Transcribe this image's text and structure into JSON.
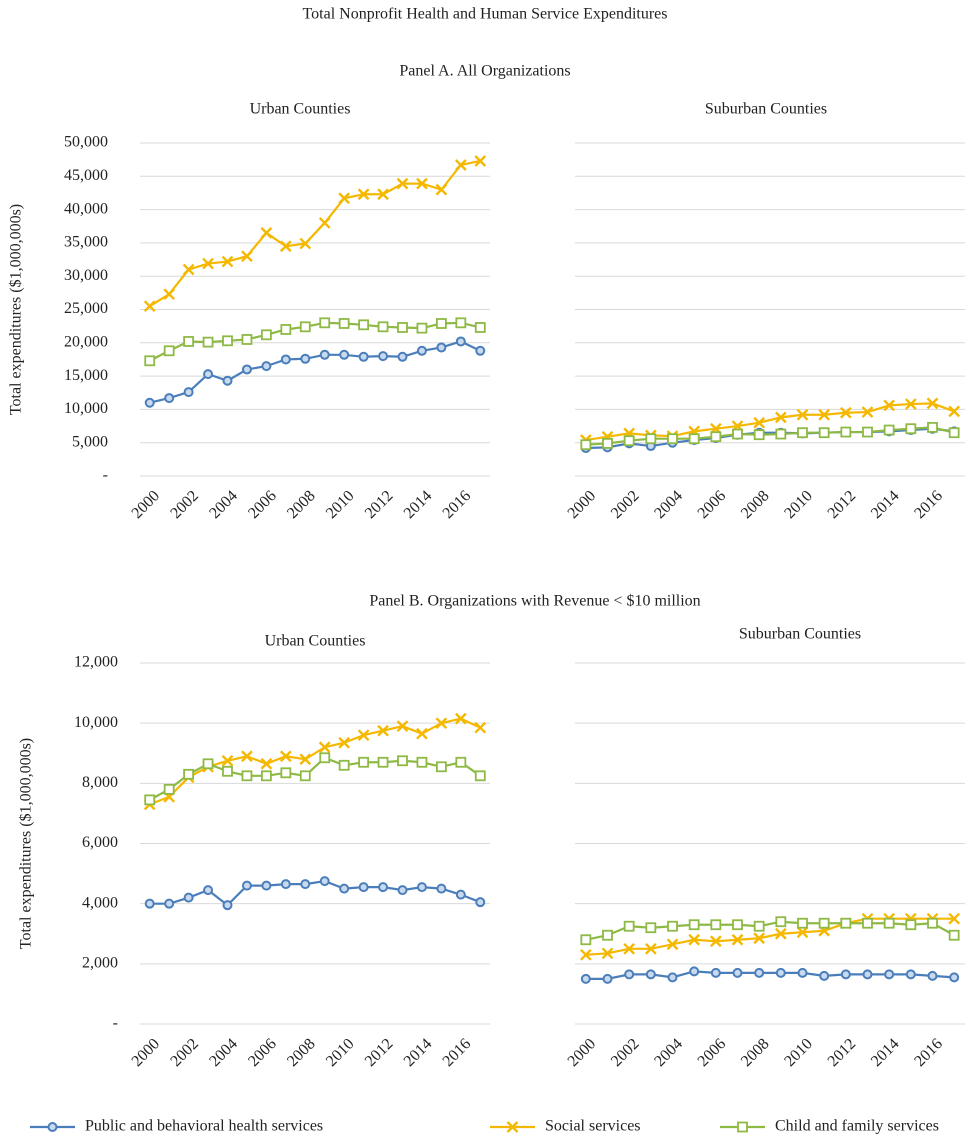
{
  "title": "Total Nonprofit Health and Human Service Expenditures",
  "panels": [
    {
      "title": "Panel A. All Organizations"
    },
    {
      "title": "Panel B. Organizations with Revenue < $10 million"
    }
  ],
  "chart_data": [
    {
      "type": "line",
      "title": "Urban Counties",
      "ylabel": "Total expenditures ($1,000,000s)",
      "categories": [
        "2000",
        null,
        "2002",
        null,
        "2004",
        null,
        "2006",
        null,
        "2008",
        null,
        "2010",
        null,
        "2012",
        null,
        "2014",
        null,
        "2016",
        null
      ],
      "ylim": [
        0,
        50000
      ],
      "yticks": [
        {
          "value": 0,
          "label": "-"
        },
        {
          "value": 5000,
          "label": "5,000"
        },
        {
          "value": 10000,
          "label": "10,000"
        },
        {
          "value": 15000,
          "label": "15,000"
        },
        {
          "value": 20000,
          "label": "20,000"
        },
        {
          "value": 25000,
          "label": "25,000"
        },
        {
          "value": 30000,
          "label": "30,000"
        },
        {
          "value": 35000,
          "label": "35,000"
        },
        {
          "value": 40000,
          "label": "40,000"
        },
        {
          "value": 45000,
          "label": "45,000"
        },
        {
          "value": 50000,
          "label": "50,000"
        }
      ],
      "grid": true,
      "series": [
        {
          "name": "Public and behavioral health services",
          "color": "#4a7ebb",
          "marker": "circle",
          "values": [
            11000,
            11700,
            12600,
            15300,
            14300,
            16000,
            16500,
            17500,
            17600,
            18200,
            18200,
            17900,
            18000,
            17900,
            18800,
            19300,
            20200,
            18800
          ]
        },
        {
          "name": "Social services",
          "color": "#f5b800",
          "marker": "x",
          "values": [
            25500,
            27300,
            31000,
            31900,
            32200,
            33000,
            36500,
            34500,
            34900,
            38000,
            41700,
            42300,
            42300,
            43900,
            43900,
            43000,
            46700,
            47300
          ]
        },
        {
          "name": "Child and family services",
          "color": "#8db944",
          "marker": "square",
          "values": [
            17300,
            18800,
            20200,
            20100,
            20300,
            20500,
            21200,
            22000,
            22400,
            23000,
            22900,
            22700,
            22400,
            22300,
            22200,
            22900,
            23000,
            22300
          ]
        }
      ]
    },
    {
      "type": "line",
      "title": "Suburban Counties",
      "categories": [
        "2000",
        null,
        "2002",
        null,
        "2004",
        null,
        "2006",
        null,
        "2008",
        null,
        "2010",
        null,
        "2012",
        null,
        "2014",
        null,
        "2016",
        null
      ],
      "series": [
        {
          "color": "#4a7ebb",
          "marker": "circle",
          "values": [
            4200,
            4300,
            4900,
            4500,
            5000,
            5400,
            5700,
            6200,
            6500,
            6500,
            6400,
            6500,
            6600,
            6600,
            6700,
            6900,
            7100,
            6700
          ]
        },
        {
          "color": "#f5b800",
          "marker": "x",
          "values": [
            5400,
            5900,
            6400,
            6100,
            6000,
            6700,
            7100,
            7500,
            8000,
            8800,
            9200,
            9200,
            9500,
            9600,
            10600,
            10800,
            10900,
            9700
          ]
        },
        {
          "color": "#8db944",
          "marker": "square",
          "values": [
            4700,
            4900,
            5300,
            5600,
            5600,
            5600,
            5900,
            6300,
            6200,
            6300,
            6500,
            6500,
            6600,
            6600,
            6900,
            7100,
            7300,
            6500
          ]
        }
      ]
    },
    {
      "type": "line",
      "title": "Urban Counties",
      "ylabel": "Total expenditures ($1,000,000s)",
      "categories": [
        "2000",
        null,
        "2002",
        null,
        "2004",
        null,
        "2006",
        null,
        "2008",
        null,
        "2010",
        null,
        "2012",
        null,
        "2014",
        null,
        "2016",
        null
      ],
      "ylim": [
        0,
        12000
      ],
      "yticks": [
        {
          "value": 0,
          "label": "-"
        },
        {
          "value": 2000,
          "label": "2,000"
        },
        {
          "value": 4000,
          "label": "4,000"
        },
        {
          "value": 6000,
          "label": "6,000"
        },
        {
          "value": 8000,
          "label": "8,000"
        },
        {
          "value": 10000,
          "label": "10,000"
        },
        {
          "value": 12000,
          "label": "12,000"
        }
      ],
      "grid": true,
      "series": [
        {
          "color": "#4a7ebb",
          "marker": "circle",
          "values": [
            4000,
            4000,
            4200,
            4450,
            3950,
            4600,
            4600,
            4650,
            4650,
            4750,
            4500,
            4550,
            4550,
            4450,
            4550,
            4500,
            4300,
            4050
          ]
        },
        {
          "color": "#f5b800",
          "marker": "x",
          "values": [
            7300,
            7550,
            8200,
            8550,
            8750,
            8900,
            8650,
            8900,
            8800,
            9200,
            9350,
            9600,
            9750,
            9900,
            9650,
            10000,
            10150,
            9850
          ]
        },
        {
          "color": "#8db944",
          "marker": "square",
          "values": [
            7450,
            7800,
            8300,
            8650,
            8400,
            8250,
            8250,
            8350,
            8250,
            8850,
            8600,
            8700,
            8700,
            8750,
            8700,
            8550,
            8700,
            8250
          ]
        }
      ]
    },
    {
      "type": "line",
      "title": "Suburban Counties",
      "categories": [
        "2000",
        null,
        "2002",
        null,
        "2004",
        null,
        "2006",
        null,
        "2008",
        null,
        "2010",
        null,
        "2012",
        null,
        "2014",
        null,
        "2016",
        null
      ],
      "series": [
        {
          "color": "#4a7ebb",
          "marker": "circle",
          "values": [
            1500,
            1500,
            1650,
            1650,
            1550,
            1750,
            1700,
            1700,
            1700,
            1700,
            1700,
            1600,
            1650,
            1650,
            1650,
            1650,
            1600,
            1550
          ]
        },
        {
          "color": "#f5b800",
          "marker": "x",
          "values": [
            2300,
            2350,
            2500,
            2500,
            2650,
            2800,
            2750,
            2800,
            2850,
            3000,
            3050,
            3100,
            3350,
            3500,
            3500,
            3500,
            3500,
            3500
          ]
        },
        {
          "color": "#8db944",
          "marker": "square",
          "values": [
            2800,
            2950,
            3250,
            3200,
            3250,
            3300,
            3300,
            3300,
            3250,
            3400,
            3350,
            3350,
            3350,
            3350,
            3350,
            3300,
            3350,
            2950
          ]
        }
      ]
    }
  ]
}
